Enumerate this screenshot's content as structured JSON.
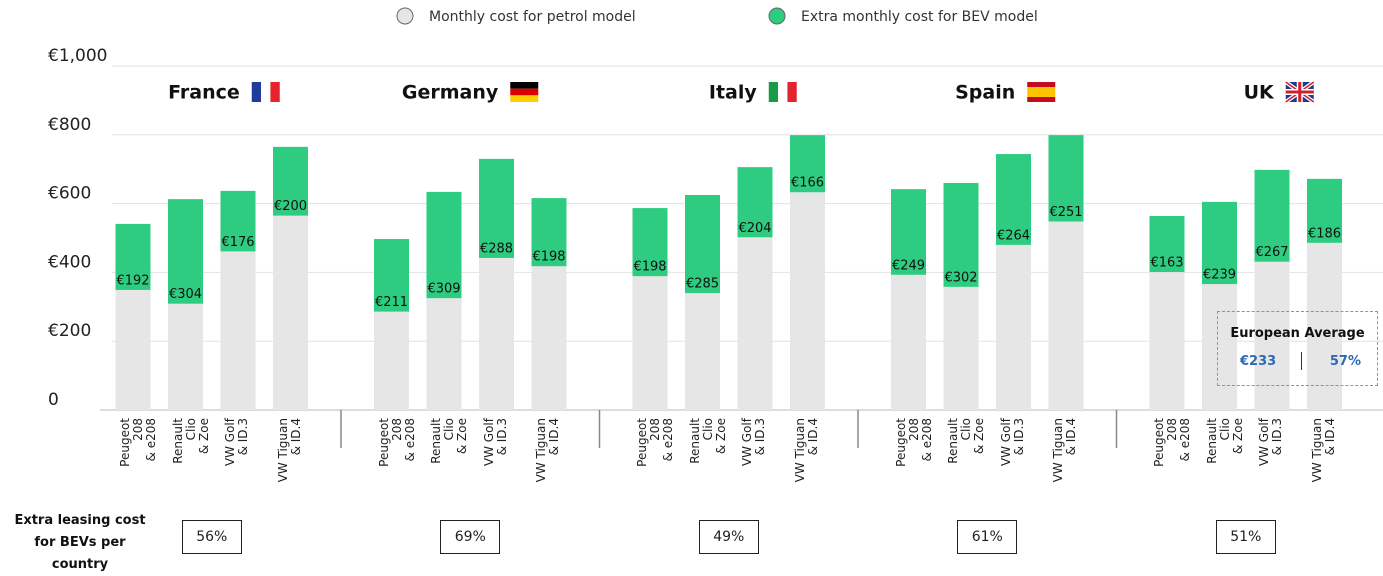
{
  "chart_data": {
    "type": "stacked_bar",
    "groups": [
      "France",
      "Germany",
      "Italy",
      "Spain",
      "UK"
    ],
    "categories": [
      "Peugeot 208\n& e208",
      "Renault Clio\n& Zoe",
      "VW Golf\n& ID.3",
      "VW Tiguan\n& ID.4",
      "Peugeot 208\n& e208",
      "Renault Clio\n& Zoe",
      "VW Golf\n& ID.3",
      "VW Tiguan\n& ID.4",
      "Peugeot 208\n& e208",
      "Renault Clio\n& Zoe",
      "VW Golf\n& ID.3",
      "VW Tiguan\n& ID.4",
      "Peugeot 208\n& e208",
      "Renault Clio\n& Zoe",
      "VW Golf\n& ID.3",
      "VW Tiguan\n& ID.4",
      "Peugeot 208\n& e208",
      "Renault Clio\n& Zoe",
      "VW Golf\n& ID.3",
      "VW Tiguan\n& ID.4"
    ],
    "series": [
      {
        "name": "Monthly cost for petrol model",
        "color": "#e6e6e6",
        "values": [
          349,
          309,
          461,
          565,
          286,
          325,
          442,
          418,
          389,
          340,
          502,
          633,
          393,
          358,
          480,
          548,
          401,
          366,
          431,
          486
        ]
      },
      {
        "name": "Extra monthly cost for BEV model",
        "color": "#2ecc80",
        "values": [
          192,
          304,
          176,
          200,
          211,
          309,
          288,
          198,
          198,
          285,
          204,
          166,
          249,
          302,
          264,
          251,
          163,
          239,
          267,
          186
        ],
        "value_labels": [
          "€192",
          "€304",
          "€176",
          "€200",
          "€211",
          "€309",
          "€288",
          "€198",
          "€198",
          "€285",
          "€204",
          "€166",
          "€249",
          "€302",
          "€264",
          "€251",
          "€163",
          "€239",
          "€267",
          "€186"
        ]
      }
    ],
    "ylim": [
      0,
      1000
    ],
    "yticks": [
      0,
      {
        "value": 200,
        "label": "€200"
      },
      {
        "value": 400,
        "label": "€400"
      },
      {
        "value": 600,
        "label": "€600"
      },
      {
        "value": 800,
        "label": "€800"
      },
      {
        "value": 1000,
        "label": "€1,000"
      }
    ],
    "grid": true,
    "footer_label": "Extra leasing cost\nfor BEVs per country\n(average)",
    "group_averages": [
      "56%",
      "69%",
      "49%",
      "61%",
      "51%"
    ],
    "inset": {
      "title": "European Average",
      "cost": "€233",
      "share": "57%"
    }
  }
}
